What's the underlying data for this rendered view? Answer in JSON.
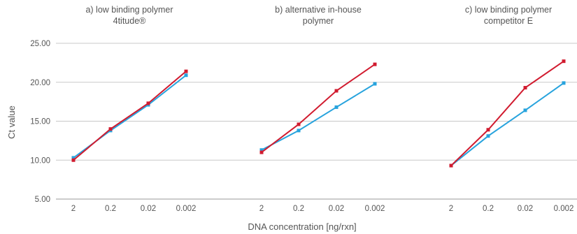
{
  "chart_data": {
    "type": "line",
    "xlabel": "DNA concentration [ng/rxn]",
    "ylabel": "Ct value",
    "ylim": [
      5,
      25
    ],
    "yticks": [
      "5.00",
      "10.00",
      "15.00",
      "20.00",
      "25.00"
    ],
    "grid": true,
    "legend": "none",
    "categories": [
      "2",
      "0.2",
      "0.02",
      "0.002"
    ],
    "series_colors": [
      "#27a3dd",
      "#d11b2f"
    ],
    "panels": [
      {
        "title_lines": [
          "a) low binding polymer",
          "4titude®"
        ],
        "series": [
          {
            "values": [
              10.3,
              13.8,
              17.1,
              20.9
            ]
          },
          {
            "values": [
              10.0,
              14.0,
              17.3,
              21.4
            ]
          }
        ]
      },
      {
        "title_lines": [
          "b) alternative in-house",
          "polymer"
        ],
        "series": [
          {
            "values": [
              11.3,
              13.8,
              16.8,
              19.8
            ]
          },
          {
            "values": [
              11.0,
              14.6,
              18.9,
              22.3
            ]
          }
        ]
      },
      {
        "title_lines": [
          "c) low binding polymer",
          "competitor E"
        ],
        "series": [
          {
            "values": [
              9.3,
              13.1,
              16.4,
              19.9
            ]
          },
          {
            "values": [
              9.3,
              13.9,
              19.3,
              22.7
            ]
          }
        ]
      }
    ]
  }
}
